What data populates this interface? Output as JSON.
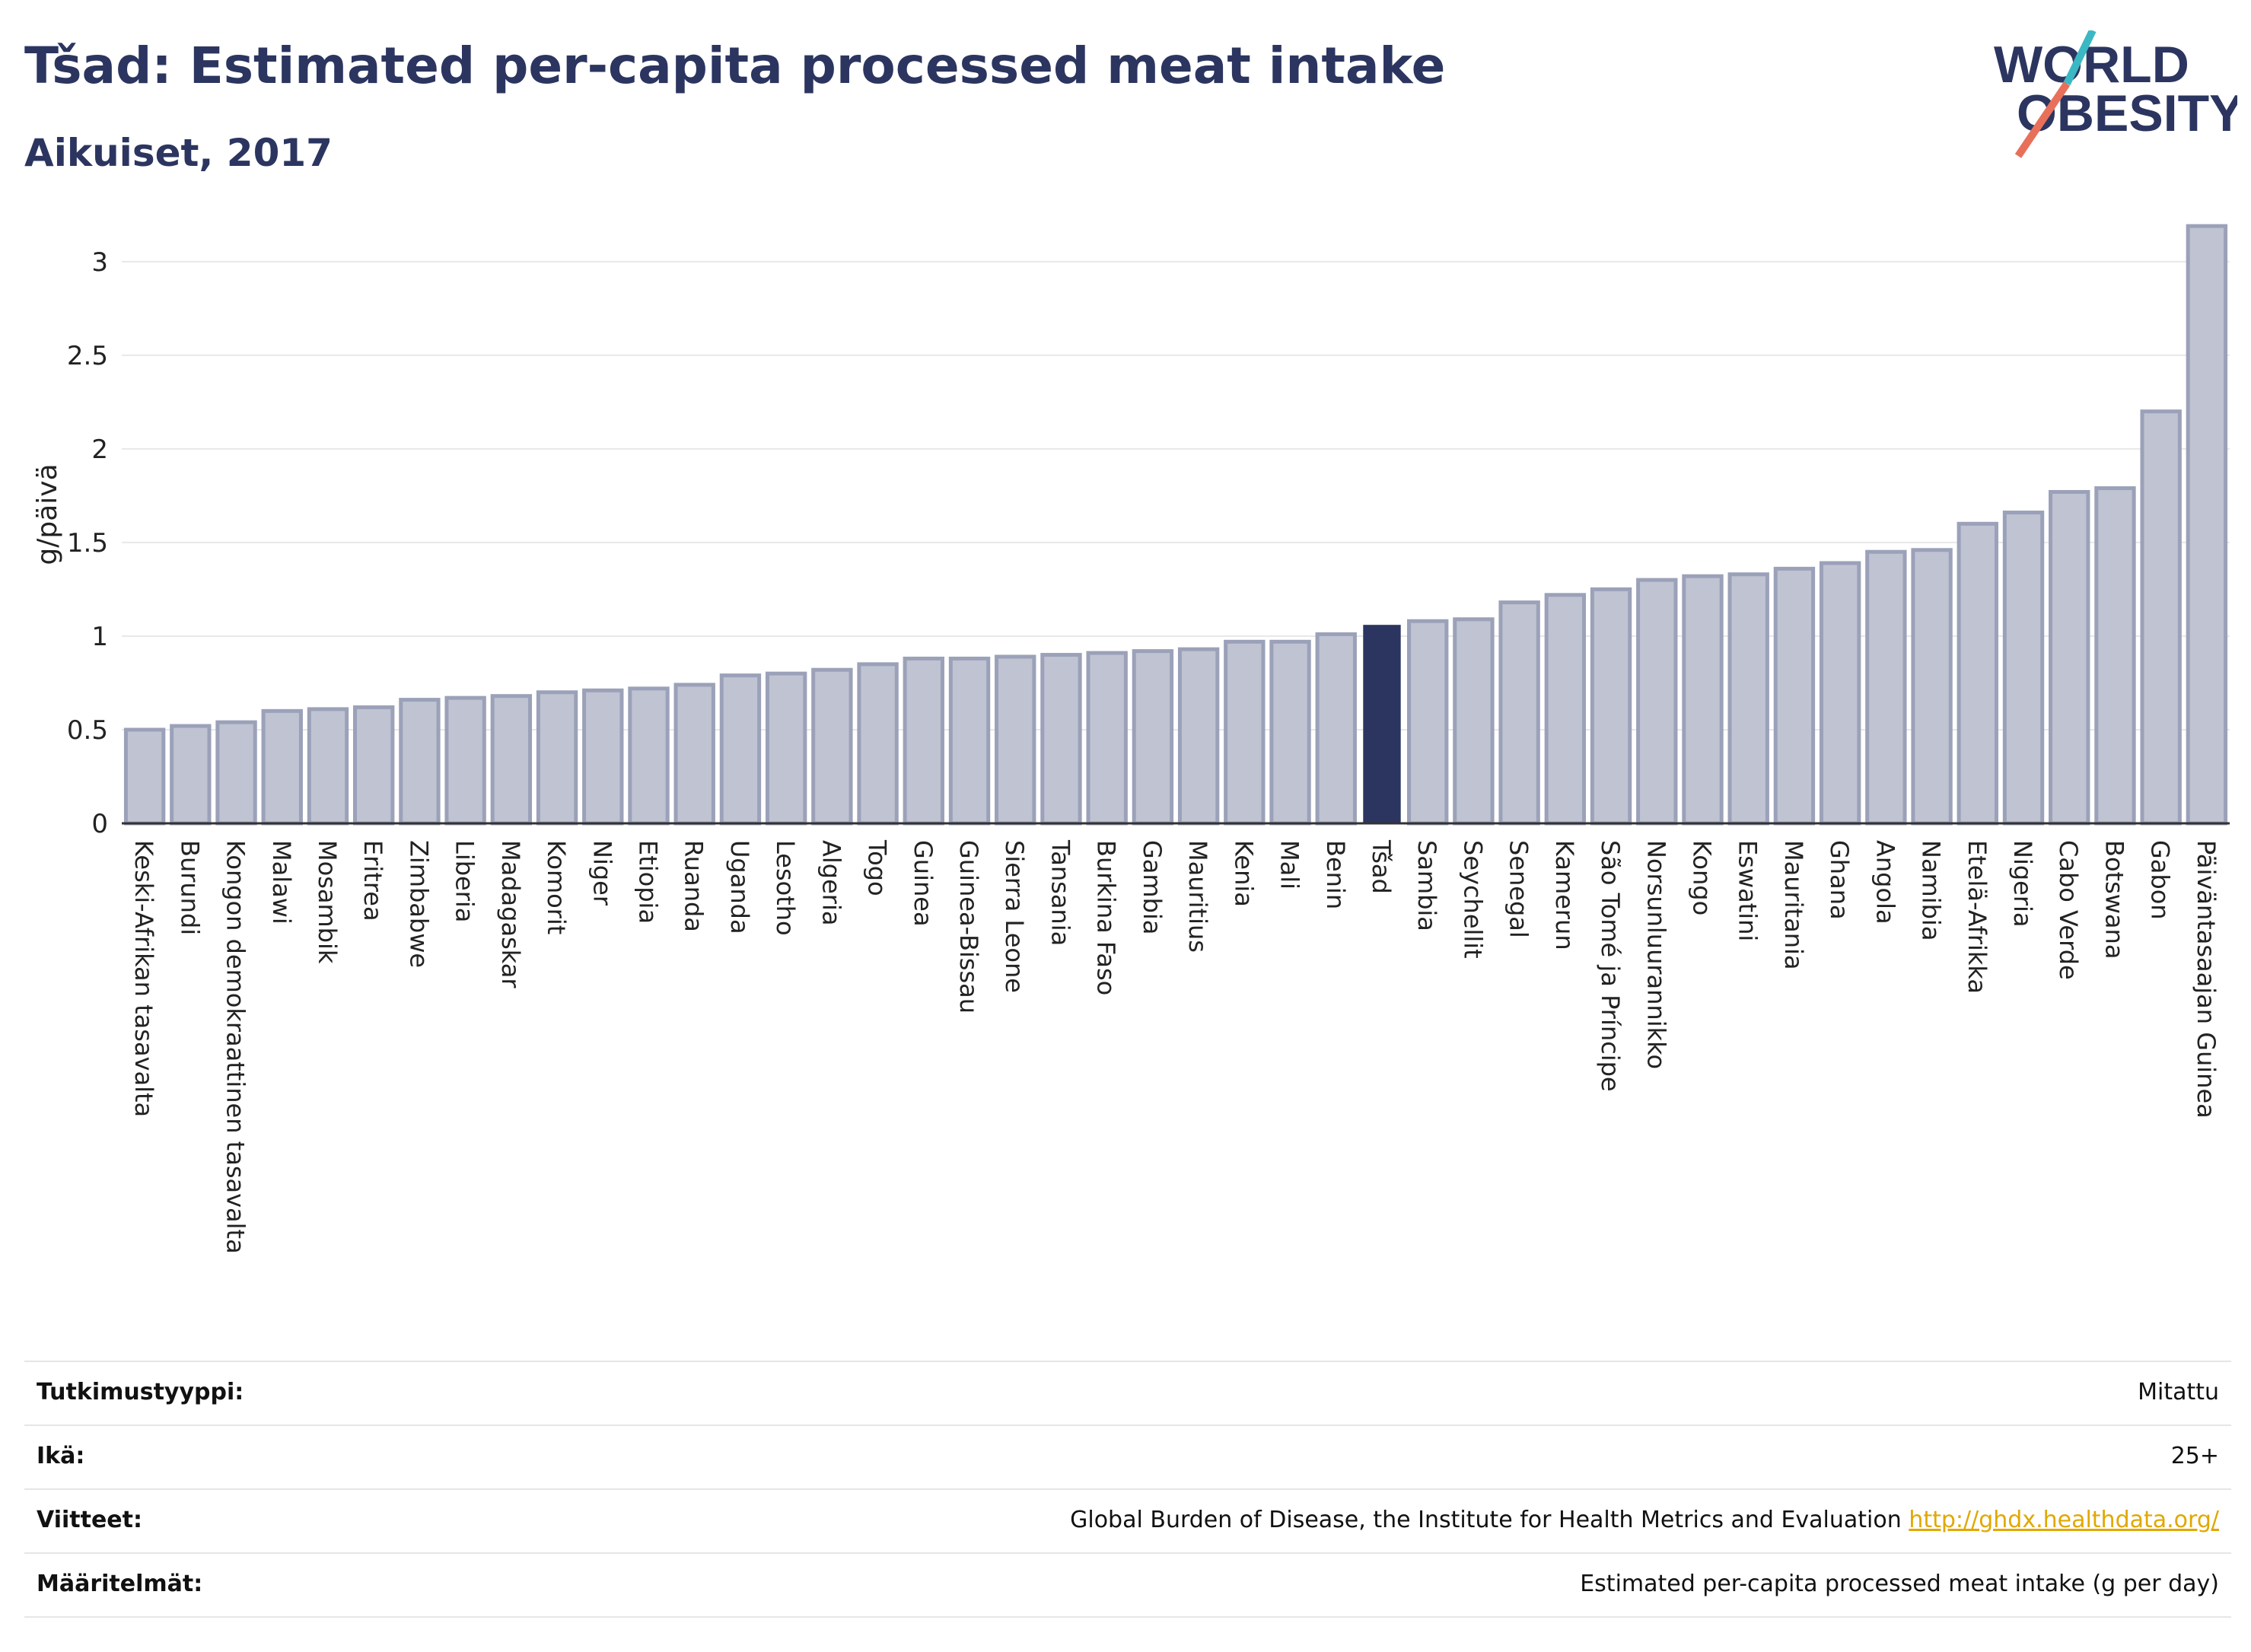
{
  "header": {
    "title": "Tšad: Estimated per-capita processed meat intake",
    "subtitle": "Aikuiset, 2017",
    "logo_line1": "WORLD",
    "logo_line2": "OBESITY"
  },
  "colors": {
    "bar_default": "#bfc3d2",
    "bar_default_border": "#9ba1b8",
    "bar_highlight": "#2b3560",
    "title": "#2b3560",
    "logo_red": "#e8705a",
    "logo_teal": "#3bb8c3"
  },
  "chart_data": {
    "type": "bar",
    "title": "Tšad: Estimated per-capita processed meat intake",
    "subtitle": "Aikuiset, 2017",
    "xlabel": "",
    "ylabel": "g/päivä",
    "ylim": [
      0,
      3.3
    ],
    "yticks": [
      0,
      0.5,
      1,
      1.5,
      2,
      2.5,
      3
    ],
    "ytick_labels": [
      "0",
      "0.5",
      "1",
      "1.5",
      "2",
      "2.5",
      "3"
    ],
    "grid": true,
    "highlight": "Tšad",
    "categories": [
      "Keski-Afrikan tasavalta",
      "Burundi",
      "Kongon demokraattinen tasavalta",
      "Malawi",
      "Mosambik",
      "Eritrea",
      "Zimbabwe",
      "Liberia",
      "Madagaskar",
      "Komorit",
      "Niger",
      "Etiopia",
      "Ruanda",
      "Uganda",
      "Lesotho",
      "Algeria",
      "Togo",
      "Guinea",
      "Guinea-Bissau",
      "Sierra Leone",
      "Tansania",
      "Burkina Faso",
      "Gambia",
      "Mauritius",
      "Kenia",
      "Mali",
      "Benin",
      "Tšad",
      "Sambia",
      "Seychellit",
      "Senegal",
      "Kamerun",
      "São Tomé ja Príncipe",
      "Norsunluurannikko",
      "Kongo",
      "Eswatini",
      "Mauritania",
      "Ghana",
      "Angola",
      "Namibia",
      "Etelä-Afrikka",
      "Nigeria",
      "Cabo Verde",
      "Botswana",
      "Gabon",
      "Päiväntasaajan Guinea"
    ],
    "values": [
      0.5,
      0.52,
      0.54,
      0.6,
      0.61,
      0.62,
      0.66,
      0.67,
      0.68,
      0.7,
      0.71,
      0.72,
      0.74,
      0.79,
      0.8,
      0.82,
      0.85,
      0.88,
      0.88,
      0.89,
      0.9,
      0.91,
      0.92,
      0.93,
      0.97,
      0.97,
      1.01,
      1.06,
      1.08,
      1.09,
      1.18,
      1.22,
      1.25,
      1.3,
      1.32,
      1.33,
      1.36,
      1.39,
      1.45,
      1.46,
      1.6,
      1.66,
      1.77,
      1.79,
      2.2,
      3.19
    ]
  },
  "meta": [
    {
      "label": "Tutkimustyyppi:",
      "value": "Mitattu",
      "link": ""
    },
    {
      "label": "Ikä:",
      "value": "25+",
      "link": ""
    },
    {
      "label": "Viitteet:",
      "value": "Global Burden of Disease, the Institute for Health Metrics and Evaluation",
      "link": "http://ghdx.healthdata.org/"
    },
    {
      "label": "Määritelmät:",
      "value": "Estimated per-capita processed meat intake (g per day)",
      "link": ""
    }
  ]
}
